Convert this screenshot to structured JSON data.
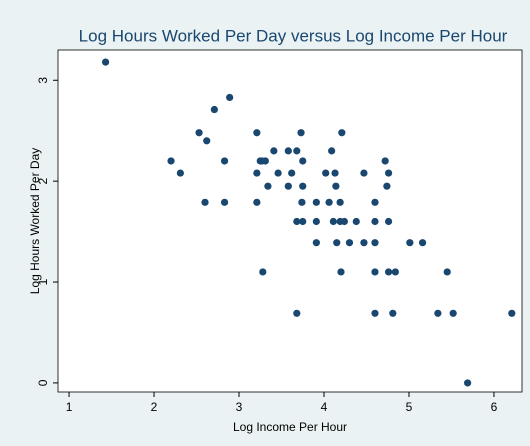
{
  "chart_data": {
    "type": "scatter",
    "title": "Log Hours Worked Per Day versus Log Income Per Hour",
    "x_label": "Log Income Per Hour",
    "y_label": "Log Hours Worked Per Day",
    "color": "#1a476f",
    "grid": false,
    "xlim": [
      0.87,
      6.33
    ],
    "ylim": [
      -0.09,
      3.3
    ],
    "xticks": [
      1,
      2,
      3,
      4,
      5,
      6
    ],
    "yticks": [
      0,
      1,
      2,
      3
    ],
    "x": [
      1.43,
      2.2,
      2.31,
      2.53,
      2.62,
      2.6,
      2.71,
      2.83,
      2.83,
      2.89,
      3.21,
      3.21,
      3.21,
      3.25,
      3.28,
      3.34,
      3.31,
      3.41,
      3.46,
      3.58,
      3.58,
      3.62,
      3.68,
      3.68,
      3.68,
      3.73,
      3.75,
      3.75,
      3.74,
      3.75,
      3.91,
      3.91,
      3.91,
      4.02,
      4.06,
      4.09,
      4.11,
      4.13,
      4.14,
      4.15,
      4.19,
      4.19,
      4.21,
      4.2,
      4.24,
      4.3,
      4.38,
      4.47,
      4.47,
      4.6,
      4.6,
      4.6,
      4.6,
      4.6,
      4.72,
      4.74,
      4.76,
      4.76,
      4.76,
      4.81,
      4.84,
      5.01,
      5.16,
      5.34,
      5.45,
      5.52,
      5.69,
      6.21,
      3.27
    ],
    "y": [
      3.18,
      2.2,
      2.08,
      2.48,
      2.4,
      1.79,
      2.71,
      2.2,
      1.79,
      2.83,
      2.48,
      2.08,
      1.79,
      2.2,
      1.1,
      1.95,
      2.2,
      2.3,
      2.08,
      2.3,
      1.95,
      2.08,
      2.3,
      1.6,
      0.69,
      2.48,
      2.2,
      1.95,
      1.79,
      1.6,
      1.79,
      1.6,
      1.39,
      2.08,
      1.79,
      2.3,
      1.6,
      2.08,
      1.95,
      1.39,
      1.79,
      1.6,
      2.48,
      1.1,
      1.6,
      1.39,
      1.6,
      2.08,
      1.39,
      1.6,
      1.39,
      1.1,
      0.69,
      1.79,
      2.2,
      1.95,
      2.08,
      1.6,
      1.1,
      0.69,
      1.1,
      1.39,
      1.39,
      0.69,
      1.1,
      0.69,
      0,
      0.69,
      2.2
    ]
  }
}
